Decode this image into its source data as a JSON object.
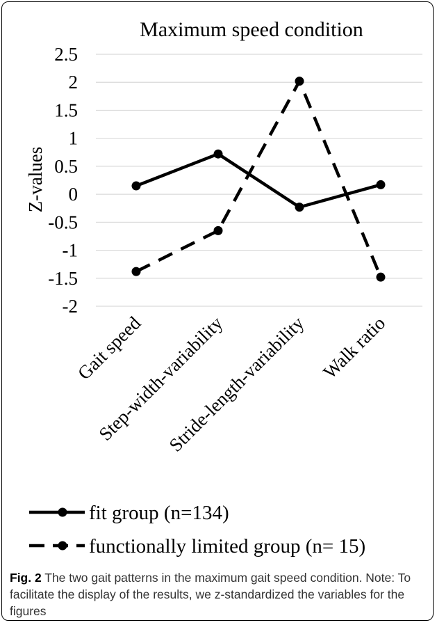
{
  "chart_data": {
    "type": "line",
    "title": "Maximum speed condition",
    "ylabel": "Z-values",
    "xlabel": "",
    "ylim": [
      -2,
      2.5
    ],
    "yticks": [
      "2.5",
      "2",
      "1.5",
      "1",
      "0.5",
      "0",
      "-0.5",
      "-1",
      "-1.5",
      "-2"
    ],
    "ytick_values": [
      2.5,
      2,
      1.5,
      1,
      0.5,
      0,
      -0.5,
      -1,
      -1.5,
      -2
    ],
    "categories": [
      "Gait speed",
      "Step-width-variability",
      "Stride-length-variability",
      "Walk ratio"
    ],
    "grid": true,
    "legend_position": "bottom",
    "series": [
      {
        "name": "fit group (n=134)",
        "style": "solid",
        "values": [
          0.15,
          0.72,
          -0.23,
          0.17
        ]
      },
      {
        "name": "functionally limited group (n= 15)",
        "style": "dashed",
        "values": [
          -1.38,
          -0.65,
          2.02,
          -1.48
        ]
      }
    ]
  },
  "caption": {
    "label": "Fig. 2",
    "text": " The two gait patterns in the maximum gait speed condition. Note: To facilitate the display of the results, we z-standardized the variables for the figures"
  },
  "colors": {
    "line": "#000000",
    "grid": "#d9d9d9",
    "caption_text": "#333333"
  }
}
